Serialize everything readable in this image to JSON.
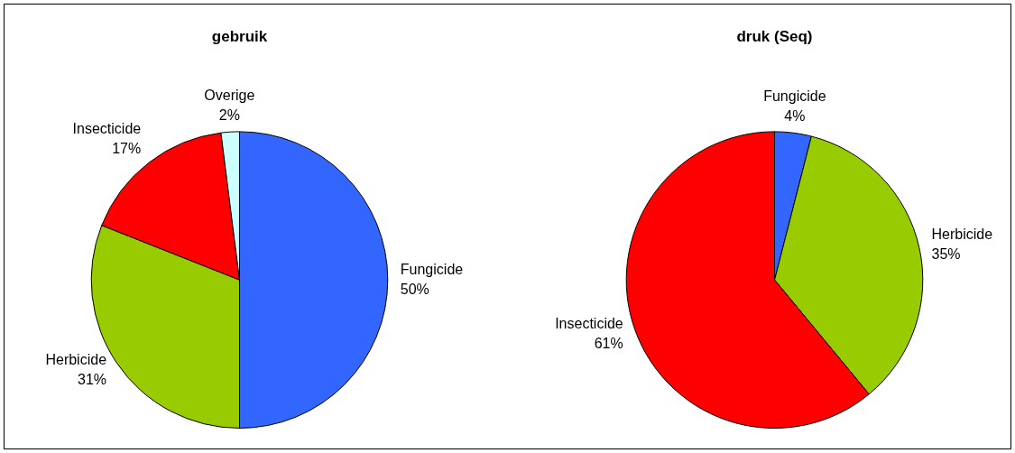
{
  "chart_data": [
    {
      "type": "pie",
      "title": "gebruik",
      "categories": [
        "Fungicide",
        "Herbicide",
        "Insecticide",
        "Overige"
      ],
      "values": [
        50,
        31,
        17,
        2
      ],
      "value_labels": [
        "50%",
        "31%",
        "17%",
        "2%"
      ],
      "colors": [
        "#3366ff",
        "#99cc00",
        "#ff0000",
        "#ccffff"
      ],
      "legend": false
    },
    {
      "type": "pie",
      "title": "druk (Seq)",
      "categories": [
        "Fungicide",
        "Herbicide",
        "Insecticide"
      ],
      "values": [
        4,
        35,
        61
      ],
      "value_labels": [
        "4%",
        "35%",
        "61%"
      ],
      "colors": [
        "#3366ff",
        "#99cc00",
        "#ff0000"
      ],
      "legend": false
    }
  ]
}
